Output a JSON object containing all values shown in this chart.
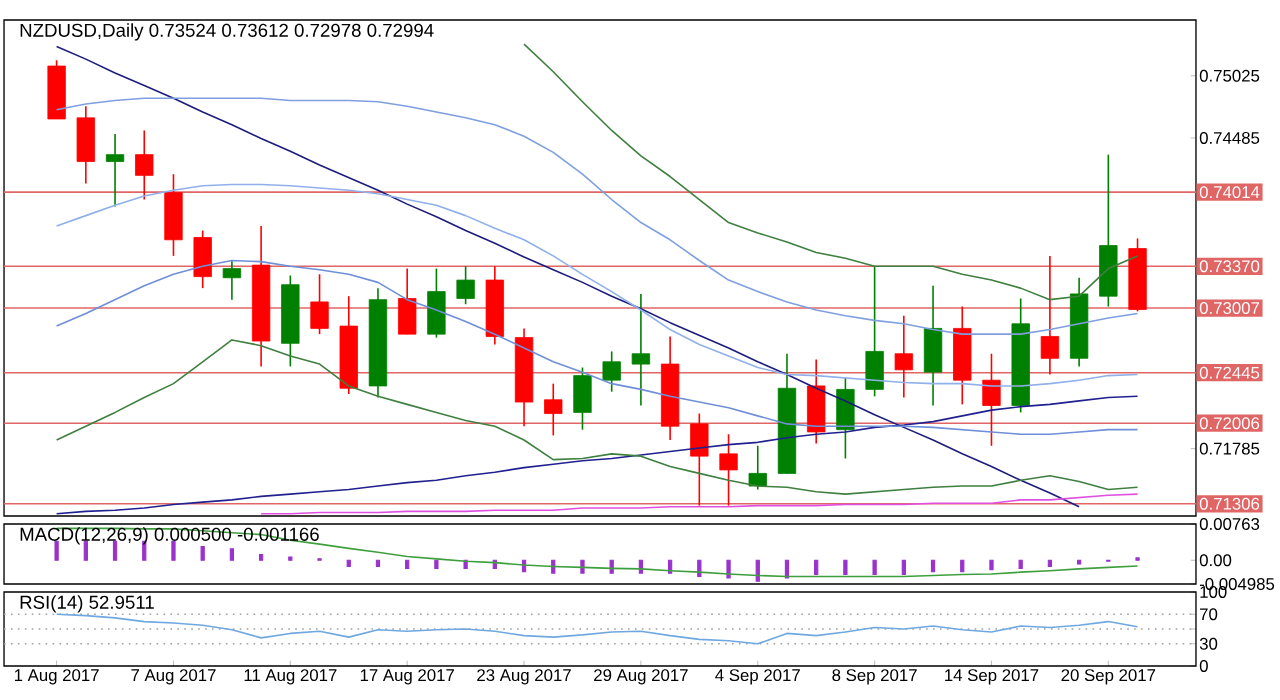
{
  "chart_data": [
    {
      "type": "candlestick",
      "title": "NZDUSD,Daily 0.73524 0.73612 0.72978 0.72994",
      "tick_labels": "y",
      "categories": [
        null,
        null,
        null,
        null,
        null,
        null,
        null,
        null,
        null,
        null,
        null,
        null,
        null,
        null,
        null,
        null,
        null,
        null,
        null,
        null,
        null,
        null,
        null,
        null,
        null,
        null,
        null,
        null,
        null,
        null,
        null,
        null,
        null,
        null,
        null,
        null,
        null,
        null
      ],
      "ohlc": [
        [
          0.7511,
          0.7516,
          0.7465,
          0.7465
        ],
        [
          0.7466,
          0.7476,
          0.7409,
          0.7428
        ],
        [
          0.7428,
          0.7452,
          0.7389,
          0.7434
        ],
        [
          0.7434,
          0.7455,
          0.7395,
          0.7416
        ],
        [
          0.7401,
          0.7417,
          0.7346,
          0.736
        ],
        [
          0.7362,
          0.7368,
          0.7318,
          0.7328
        ],
        [
          0.7327,
          0.7342,
          0.7308,
          0.7335
        ],
        [
          0.7338,
          0.7372,
          0.725,
          0.7272
        ],
        [
          0.727,
          0.7329,
          0.725,
          0.7321
        ],
        [
          0.7306,
          0.733,
          0.7278,
          0.7283
        ],
        [
          0.7285,
          0.7311,
          0.7226,
          0.7231
        ],
        [
          0.7233,
          0.7318,
          0.7223,
          0.7308
        ],
        [
          0.7309,
          0.7335,
          0.7278,
          0.7278
        ],
        [
          0.7278,
          0.7335,
          0.7275,
          0.7315
        ],
        [
          0.7309,
          0.7337,
          0.7304,
          0.7325
        ],
        [
          0.7325,
          0.7337,
          0.7269,
          0.7276
        ],
        [
          0.7275,
          0.7283,
          0.7198,
          0.7219
        ],
        [
          0.7221,
          0.7235,
          0.719,
          0.7209
        ],
        [
          0.721,
          0.7249,
          0.7195,
          0.7242
        ],
        [
          0.7238,
          0.7263,
          0.7228,
          0.7254
        ],
        [
          0.7252,
          0.7313,
          0.7216,
          0.7261
        ],
        [
          0.7252,
          0.7276,
          0.7186,
          0.7198
        ],
        [
          0.72,
          0.7209,
          0.7129,
          0.7172
        ],
        [
          0.7174,
          0.7191,
          0.7129,
          0.716
        ],
        [
          0.7146,
          0.7181,
          0.7143,
          0.7157
        ],
        [
          0.7157,
          0.7261,
          0.7157,
          0.7231
        ],
        [
          0.7233,
          0.7256,
          0.7183,
          0.7193
        ],
        [
          0.7195,
          0.724,
          0.717,
          0.723
        ],
        [
          0.723,
          0.7337,
          0.7224,
          0.7263
        ],
        [
          0.7261,
          0.7294,
          0.7223,
          0.7247
        ],
        [
          0.7245,
          0.732,
          0.7216,
          0.7283
        ],
        [
          0.7283,
          0.7302,
          0.7217,
          0.7238
        ],
        [
          0.7238,
          0.7261,
          0.7181,
          0.7216
        ],
        [
          0.7216,
          0.7309,
          0.721,
          0.7287
        ],
        [
          0.7276,
          0.7346,
          0.7243,
          0.7257
        ],
        [
          0.7257,
          0.7327,
          0.725,
          0.7313
        ],
        [
          0.7311,
          0.7434,
          0.7302,
          0.7355
        ],
        [
          0.73524,
          0.73612,
          0.72978,
          0.72994
        ]
      ],
      "colors": [
        "#ff0000",
        "#ff0000",
        "#008000",
        "#ff0000",
        "#ff0000",
        "#ff0000",
        "#008000",
        "#ff0000",
        "#008000",
        "#ff0000",
        "#ff0000",
        "#008000",
        "#ff0000",
        "#008000",
        "#008000",
        "#ff0000",
        "#ff0000",
        "#ff0000",
        "#008000",
        "#008000",
        "#008000",
        "#ff0000",
        "#ff0000",
        "#ff0000",
        "#008000",
        "#008000",
        "#ff0000",
        "#008000",
        "#008000",
        "#ff0000",
        "#008000",
        "#ff0000",
        "#ff0000",
        "#008000",
        "#ff0000",
        "#008000",
        "#008000",
        "#ff0000"
      ],
      "series": [
        {
          "type": "line",
          "color": "#1c1c7c",
          "values": [
            0.7528,
            0.7517,
            0.7505,
            0.7494,
            0.7483,
            0.7471,
            0.746,
            0.7448,
            0.7437,
            0.7425,
            0.7414,
            0.7403,
            0.7391,
            0.738,
            0.7368,
            0.7357,
            0.7345,
            0.7334,
            0.7323,
            0.7311,
            0.73,
            0.7288,
            0.7277,
            0.7266,
            0.7254,
            0.7243,
            0.7231,
            0.722,
            0.7208,
            0.7197,
            0.7186,
            0.7174,
            0.7163,
            0.7151,
            0.714,
            0.7128,
            null,
            null
          ]
        },
        {
          "type": "line",
          "color": "#202090",
          "values": [
            0.7122,
            0.7124,
            0.7125,
            0.7127,
            0.713,
            0.7132,
            0.7134,
            0.7137,
            0.7139,
            0.7141,
            0.7143,
            0.7146,
            0.7149,
            0.7151,
            0.7155,
            0.7158,
            0.7162,
            0.7165,
            0.7168,
            0.717,
            0.7173,
            0.7176,
            0.7179,
            0.7182,
            0.7184,
            0.7188,
            0.7191,
            0.7193,
            0.7197,
            0.7199,
            0.7202,
            0.7207,
            0.7212,
            0.7215,
            0.7217,
            0.722,
            0.7223,
            0.7224
          ]
        },
        {
          "type": "line",
          "color": "#7f9fe0",
          "values": [
            0.7473,
            0.7478,
            0.7481,
            0.7483,
            0.7483,
            0.7483,
            0.7483,
            0.7483,
            0.7481,
            0.7481,
            0.7481,
            0.748,
            0.7476,
            0.7471,
            0.7466,
            0.746,
            0.745,
            0.7436,
            0.7417,
            0.7395,
            0.7375,
            0.736,
            0.7342,
            0.7325,
            0.7315,
            0.7306,
            0.7299,
            0.7294,
            0.729,
            0.7287,
            0.7282,
            0.7278,
            0.7278,
            0.7278,
            0.7282,
            0.7287,
            0.7292,
            0.7296
          ]
        },
        {
          "type": "line",
          "color": "#8fb0ea",
          "values": [
            0.7372,
            0.7381,
            0.739,
            0.7398,
            0.7403,
            0.7407,
            0.7408,
            0.7408,
            0.7407,
            0.7405,
            0.7403,
            0.74,
            0.7395,
            0.739,
            0.7381,
            0.737,
            0.736,
            0.7346,
            0.733,
            0.7315,
            0.7299,
            0.7282,
            0.7269,
            0.7259,
            0.7249,
            0.7243,
            0.7242,
            0.724,
            0.7238,
            0.7236,
            0.7235,
            0.7235,
            0.7233,
            0.7233,
            0.7235,
            0.7238,
            0.7242,
            0.7243
          ]
        },
        {
          "type": "line",
          "color": "#6f8fd8",
          "values": [
            0.7285,
            0.7296,
            0.7308,
            0.732,
            0.733,
            0.7337,
            0.7342,
            0.7341,
            0.7337,
            0.7334,
            0.733,
            0.7323,
            0.7308,
            0.7299,
            0.7289,
            0.7278,
            0.7266,
            0.7254,
            0.7245,
            0.7235,
            0.723,
            0.7224,
            0.7219,
            0.7214,
            0.7207,
            0.72,
            0.7198,
            0.7198,
            0.7198,
            0.7198,
            0.7197,
            0.7195,
            0.7193,
            0.7191,
            0.7191,
            0.7193,
            0.7195,
            0.7195
          ]
        },
        {
          "type": "line",
          "color": "#3f7f3f",
          "values": [
            null,
            null,
            null,
            null,
            null,
            null,
            null,
            null,
            null,
            null,
            null,
            null,
            null,
            null,
            null,
            null,
            0.753,
            0.7506,
            0.748,
            0.7455,
            0.7433,
            0.7415,
            0.7395,
            0.7375,
            0.7366,
            0.7358,
            0.7349,
            0.7344,
            0.7337,
            0.7337,
            0.7337,
            0.733,
            0.7325,
            0.7318,
            0.7308,
            0.7311,
            0.7335,
            0.7346
          ]
        },
        {
          "type": "line",
          "color": "#3f7f3f",
          "values": [
            0.7186,
            0.7198,
            0.721,
            0.7223,
            0.7235,
            0.7254,
            0.7273,
            0.7268,
            0.7259,
            0.7252,
            0.7233,
            0.7224,
            0.7217,
            0.721,
            0.7203,
            0.7198,
            0.7186,
            0.7169,
            0.717,
            0.7174,
            0.7172,
            0.7163,
            0.7157,
            0.7151,
            0.7146,
            0.7145,
            0.7141,
            0.7139,
            0.7141,
            0.7143,
            0.7145,
            0.7146,
            0.7146,
            0.7151,
            0.7155,
            0.715,
            0.7143,
            0.7145
          ]
        },
        {
          "type": "line",
          "color": "#e050e0",
          "values": [
            null,
            null,
            null,
            null,
            null,
            null,
            null,
            0.7122,
            0.7122,
            0.7123,
            0.7123,
            0.7123,
            0.7124,
            0.7124,
            0.7124,
            0.7125,
            0.7125,
            0.7125,
            0.7127,
            0.7127,
            0.7127,
            0.7128,
            0.7128,
            0.7128,
            0.7129,
            0.7129,
            0.7129,
            0.713,
            0.713,
            0.713,
            0.7131,
            0.7131,
            0.7131,
            0.7134,
            0.7134,
            0.7136,
            0.7138,
            0.7139
          ]
        }
      ],
      "ylim": [
        0.712,
        0.7551
      ],
      "yticks": [
        0.75025,
        0.74485,
        0.71785
      ],
      "ref_lines": [
        {
          "axis": "y",
          "value": 0.74014,
          "label": "0.74014",
          "color": "#e06666"
        },
        {
          "axis": "y",
          "value": 0.7337,
          "label": "0.73370",
          "color": "#e06666"
        },
        {
          "axis": "y",
          "value": 0.73007,
          "label": "0.73007",
          "color": "#e06666"
        },
        {
          "axis": "y",
          "value": 0.72445,
          "label": "0.72445",
          "color": "#e06666"
        },
        {
          "axis": "y",
          "value": 0.72006,
          "label": "0.72006",
          "color": "#e06666"
        },
        {
          "axis": "y",
          "value": 0.71306,
          "label": "0.71306",
          "color": "#e06666"
        }
      ]
    },
    {
      "type": "bar",
      "title": "MACD(12,26,9) 0.000500 -0.001166",
      "tick_labels": "y",
      "categories": [
        null,
        null,
        null,
        null,
        null,
        null,
        null,
        null,
        null,
        null,
        null,
        null,
        null,
        null,
        null,
        null,
        null,
        null,
        null,
        null,
        null,
        null,
        null,
        null,
        null,
        null,
        null,
        null,
        null,
        null,
        null,
        null,
        null,
        null,
        null,
        null,
        null,
        null
      ],
      "series": [
        {
          "color": "#9933cc",
          "values": [
            0.004,
            0.004,
            0.004,
            0.004,
            0.004,
            0.0029,
            0.0024,
            0.0012,
            0.0007,
            0.0003,
            -0.0013,
            -0.0013,
            -0.0017,
            -0.0017,
            -0.0017,
            -0.0017,
            -0.0024,
            -0.0027,
            -0.0027,
            -0.0027,
            -0.0027,
            -0.0027,
            -0.0034,
            -0.0037,
            -0.0044,
            -0.0037,
            -0.003,
            -0.003,
            -0.003,
            -0.003,
            -0.0024,
            -0.0024,
            -0.002,
            -0.0017,
            -0.0013,
            -0.0008,
            -0.0002,
            0.0005
          ]
        },
        {
          "type": "line",
          "color": "#3f9f3f",
          "values": [
            0.0067,
            0.0067,
            0.0067,
            0.0066,
            0.0066,
            0.0062,
            0.0058,
            0.0054,
            0.0042,
            0.0034,
            0.0025,
            0.0017,
            0.0008,
            0.0003,
            -0.0002,
            -0.0005,
            -0.001,
            -0.0013,
            -0.0015,
            -0.0017,
            -0.0018,
            -0.0022,
            -0.0025,
            -0.0029,
            -0.0032,
            -0.0034,
            -0.0034,
            -0.0034,
            -0.0034,
            -0.0034,
            -0.0032,
            -0.003,
            -0.0029,
            -0.0025,
            -0.0022,
            -0.0018,
            -0.0015,
            -0.0012
          ]
        }
      ],
      "ylim": [
        -0.004985,
        0.00763
      ],
      "yticks": [
        0.00763,
        {
          "value": 0,
          "label": "0.00"
        },
        -0.004985
      ]
    },
    {
      "type": "line",
      "title": "RSI(14) 52.9511",
      "categories": [
        "1 Aug 2017",
        null,
        null,
        null,
        "7 Aug 2017",
        null,
        null,
        null,
        "11 Aug 2017",
        null,
        null,
        null,
        "17 Aug 2017",
        null,
        null,
        null,
        "23 Aug 2017",
        null,
        null,
        null,
        "29 Aug 2017",
        null,
        null,
        null,
        "4 Sep 2017",
        null,
        null,
        null,
        "8 Sep 2017",
        null,
        null,
        null,
        "14 Sep 2017",
        null,
        null,
        null,
        "20 Sep 2017",
        null
      ],
      "series": [
        {
          "color": "#6fa8e0",
          "values": [
            70,
            68,
            65,
            60,
            58,
            55,
            49,
            38,
            44,
            47,
            39,
            49,
            47,
            49,
            50,
            47,
            41,
            39,
            42,
            46,
            47,
            41,
            36,
            34,
            30,
            44,
            41,
            46,
            52,
            50,
            54,
            49,
            46,
            54,
            52,
            55,
            60,
            53
          ]
        }
      ],
      "ylim": [
        0,
        100
      ],
      "yticks": [
        100,
        70,
        {
          "value": 50,
          "label": null
        },
        30,
        0
      ],
      "ref_lines": [
        {
          "axis": "y",
          "value": 70,
          "color": "#a0a0a0",
          "line_style": "dotted"
        },
        {
          "axis": "y",
          "value": 50,
          "color": "#a0a0a0",
          "line_style": "dotted"
        },
        {
          "axis": "y",
          "value": 30,
          "color": "#a0a0a0",
          "line_style": "dotted"
        }
      ]
    }
  ]
}
